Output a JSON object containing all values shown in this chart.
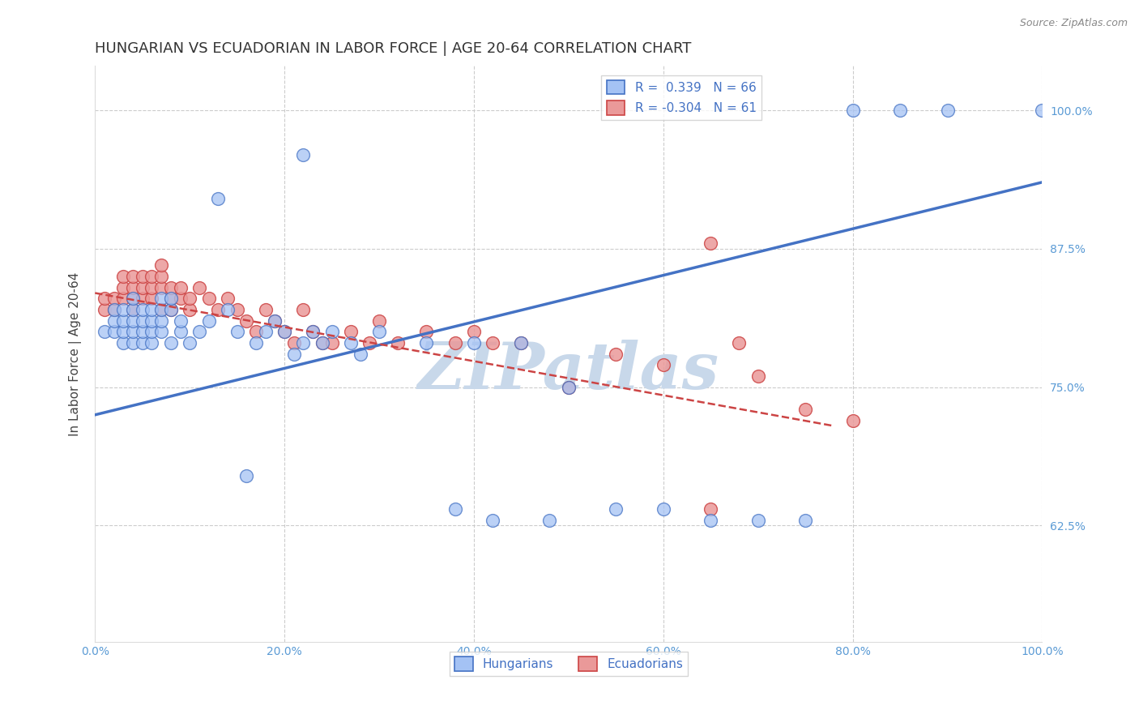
{
  "title": "HUNGARIAN VS ECUADORIAN IN LABOR FORCE | AGE 20-64 CORRELATION CHART",
  "source_text": "Source: ZipAtlas.com",
  "ylabel": "In Labor Force | Age 20-64",
  "xlim": [
    0.0,
    1.0
  ],
  "ylim": [
    0.52,
    1.04
  ],
  "yticks": [
    0.625,
    0.75,
    0.875,
    1.0
  ],
  "ytick_labels": [
    "62.5%",
    "75.0%",
    "87.5%",
    "100.0%"
  ],
  "xticks": [
    0.0,
    0.2,
    0.4,
    0.6,
    0.8,
    1.0
  ],
  "xtick_labels": [
    "0.0%",
    "20.0%",
    "40.0%",
    "60.0%",
    "80.0%",
    "100.0%"
  ],
  "hungarian_R": 0.339,
  "hungarian_N": 66,
  "ecuadorian_R": -0.304,
  "ecuadorian_N": 61,
  "hungarian_color": "#a4c2f4",
  "ecuadorian_color": "#ea9999",
  "trend_blue": "#4472c4",
  "trend_pink": "#cc4444",
  "watermark_color": "#c8d8ea",
  "legend_label_hun": "Hungarians",
  "legend_label_ecu": "Ecuadorians",
  "background_color": "#ffffff",
  "grid_color": "#cccccc",
  "title_fontsize": 13,
  "axis_label_fontsize": 11,
  "tick_fontsize": 10,
  "legend_fontsize": 11,
  "marker_size": 130,
  "hun_x": [
    0.01,
    0.02,
    0.02,
    0.02,
    0.03,
    0.03,
    0.03,
    0.03,
    0.04,
    0.04,
    0.04,
    0.04,
    0.04,
    0.05,
    0.05,
    0.05,
    0.05,
    0.06,
    0.06,
    0.06,
    0.06,
    0.07,
    0.07,
    0.07,
    0.07,
    0.08,
    0.08,
    0.08,
    0.09,
    0.09,
    0.1,
    0.11,
    0.12,
    0.13,
    0.14,
    0.15,
    0.16,
    0.17,
    0.18,
    0.19,
    0.2,
    0.21,
    0.22,
    0.22,
    0.23,
    0.24,
    0.25,
    0.27,
    0.28,
    0.3,
    0.35,
    0.38,
    0.4,
    0.42,
    0.45,
    0.48,
    0.5,
    0.55,
    0.6,
    0.65,
    0.7,
    0.75,
    0.8,
    0.85,
    0.9,
    1.0
  ],
  "hun_y": [
    0.8,
    0.8,
    0.81,
    0.82,
    0.79,
    0.8,
    0.81,
    0.82,
    0.79,
    0.8,
    0.81,
    0.82,
    0.83,
    0.79,
    0.8,
    0.81,
    0.82,
    0.79,
    0.8,
    0.81,
    0.82,
    0.8,
    0.81,
    0.82,
    0.83,
    0.79,
    0.82,
    0.83,
    0.8,
    0.81,
    0.79,
    0.8,
    0.81,
    0.92,
    0.82,
    0.8,
    0.67,
    0.79,
    0.8,
    0.81,
    0.8,
    0.78,
    0.96,
    0.79,
    0.8,
    0.79,
    0.8,
    0.79,
    0.78,
    0.8,
    0.79,
    0.64,
    0.79,
    0.63,
    0.79,
    0.63,
    0.75,
    0.64,
    0.64,
    0.63,
    0.63,
    0.63,
    1.0,
    1.0,
    1.0,
    1.0
  ],
  "ecu_x": [
    0.01,
    0.01,
    0.02,
    0.02,
    0.03,
    0.03,
    0.03,
    0.04,
    0.04,
    0.04,
    0.04,
    0.05,
    0.05,
    0.05,
    0.06,
    0.06,
    0.06,
    0.07,
    0.07,
    0.07,
    0.07,
    0.08,
    0.08,
    0.08,
    0.09,
    0.09,
    0.1,
    0.1,
    0.11,
    0.12,
    0.13,
    0.14,
    0.15,
    0.16,
    0.17,
    0.18,
    0.19,
    0.2,
    0.21,
    0.22,
    0.23,
    0.24,
    0.25,
    0.27,
    0.29,
    0.3,
    0.32,
    0.35,
    0.38,
    0.4,
    0.42,
    0.45,
    0.5,
    0.55,
    0.6,
    0.65,
    0.68,
    0.7,
    0.75,
    0.8,
    0.65
  ],
  "ecu_y": [
    0.82,
    0.83,
    0.82,
    0.83,
    0.83,
    0.84,
    0.85,
    0.82,
    0.83,
    0.84,
    0.85,
    0.83,
    0.84,
    0.85,
    0.83,
    0.84,
    0.85,
    0.82,
    0.84,
    0.85,
    0.86,
    0.82,
    0.83,
    0.84,
    0.83,
    0.84,
    0.82,
    0.83,
    0.84,
    0.83,
    0.82,
    0.83,
    0.82,
    0.81,
    0.8,
    0.82,
    0.81,
    0.8,
    0.79,
    0.82,
    0.8,
    0.79,
    0.79,
    0.8,
    0.79,
    0.81,
    0.79,
    0.8,
    0.79,
    0.8,
    0.79,
    0.79,
    0.75,
    0.78,
    0.77,
    0.64,
    0.79,
    0.76,
    0.73,
    0.72,
    0.88
  ],
  "blue_line_x0": 0.0,
  "blue_line_y0": 0.725,
  "blue_line_x1": 1.0,
  "blue_line_y1": 0.935,
  "pink_line_x0": 0.0,
  "pink_line_y0": 0.835,
  "pink_line_x1": 0.78,
  "pink_line_y1": 0.715
}
